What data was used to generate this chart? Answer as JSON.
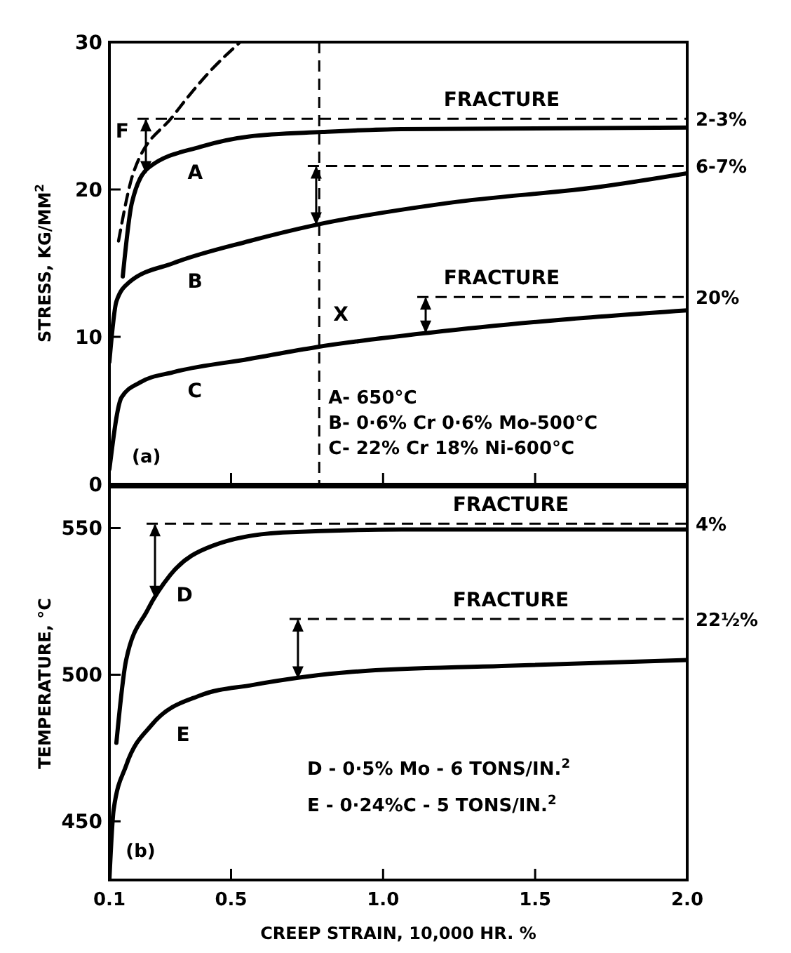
{
  "chart_data": [
    {
      "type": "line",
      "ylabel": "STRESS, KG/MM$^{2}$",
      "xlim": [
        0.1,
        2.0
      ],
      "ylim": [
        0,
        30
      ],
      "xticks": [
        0.1,
        0.5,
        1.0,
        1.5,
        2.0
      ],
      "yticks": [
        0,
        10,
        20,
        30
      ],
      "tick_labels": "y",
      "grid": false,
      "marker": "none",
      "series": [
        {
          "name": "A",
          "color": "#000000",
          "line_style": "solid",
          "x": [
            0.144,
            0.174,
            0.23,
            0.4,
            0.56,
            0.8,
            1.06,
            2.0
          ],
          "values": [
            14.1,
            19.1,
            21.5,
            22.9,
            23.6,
            23.9,
            24.1,
            24.2
          ]
        },
        {
          "name": "B",
          "color": "#000000",
          "line_style": "solid",
          "x": [
            0.1,
            0.123,
            0.165,
            0.31,
            0.56,
            0.78,
            1.22,
            1.72,
            2.0
          ],
          "values": [
            8.3,
            12.4,
            13.7,
            15.0,
            16.5,
            17.6,
            19.1,
            20.2,
            21.1
          ]
        },
        {
          "name": "C",
          "color": "#000000",
          "line_style": "solid",
          "x": [
            0.1,
            0.14,
            0.2,
            0.31,
            0.56,
            0.78,
            1.16,
            1.55,
            2.0
          ],
          "values": [
            1.0,
            5.9,
            6.9,
            7.6,
            8.5,
            9.3,
            10.3,
            11.1,
            11.8
          ]
        },
        {
          "name": "F",
          "color": "#000000",
          "line_style": "dashed",
          "x": [
            0.13,
            0.18,
            0.31,
            0.43,
            0.53
          ],
          "values": [
            16.5,
            21.2,
            25.0,
            28.0,
            30.0
          ]
        }
      ],
      "ref_lines": [
        {
          "axis": "y",
          "value": 24.8,
          "line_style": "dashed"
        },
        {
          "axis": "y",
          "value": 21.6,
          "line_style": "dashed"
        },
        {
          "axis": "y",
          "value": 12.7,
          "line_style": "dashed"
        },
        {
          "axis": "x",
          "value": 0.79,
          "label": "X",
          "line_style": "dashed"
        }
      ],
      "annotations": [
        "(a)",
        "A- 650°C",
        "B- 0·6% Cr 0·6% Mo-500°C",
        "C- 22% Cr 18% Ni-600°C",
        {
          "text": "FRACTURE",
          "x": 1.39,
          "y": 24.8
        },
        {
          "text": "FRACTURE",
          "x": 1.39,
          "y": 12.7
        },
        {
          "text": "2-3%",
          "x": 2.0,
          "y": 24.8
        },
        {
          "text": "6-7%",
          "x": 2.0,
          "y": 21.6
        },
        {
          "text": "20%",
          "x": 2.0,
          "y": 12.7
        }
      ]
    },
    {
      "type": "line",
      "xlabel": "CREEP STRAIN, 10,000 HR. %",
      "ylabel": "TEMPERATURE, °C",
      "xlim": [
        0.1,
        2.0
      ],
      "ylim": [
        430,
        564
      ],
      "xticks": [
        {
          "value": 0.1,
          "label": "0.1"
        },
        {
          "value": 0.5,
          "label": "0.5"
        },
        {
          "value": 1.0,
          "label": "1.0"
        },
        {
          "value": 1.5,
          "label": "1.5"
        },
        {
          "value": 2.0,
          "label": "2.0"
        }
      ],
      "yticks": [
        450,
        500,
        550
      ],
      "grid": false,
      "marker": "none",
      "series": [
        {
          "name": "D",
          "color": "#000000",
          "line_style": "solid",
          "x": [
            0.123,
            0.155,
            0.225,
            0.3,
            0.44,
            0.67,
            1.06,
            2.0
          ],
          "values": [
            476.8,
            505,
            522,
            534,
            544,
            548.5,
            549.5,
            549.5
          ]
        },
        {
          "name": "E",
          "color": "#000000",
          "line_style": "solid",
          "x": [
            0.1,
            0.114,
            0.155,
            0.24,
            0.4,
            0.57,
            0.9,
            1.39,
            2.0
          ],
          "values": [
            430,
            454,
            469,
            483,
            493,
            496.5,
            501,
            503,
            505
          ]
        }
      ],
      "ref_lines": [
        {
          "axis": "y",
          "value": 551.5,
          "line_style": "dashed"
        },
        {
          "axis": "y",
          "value": 519,
          "line_style": "dashed"
        }
      ],
      "annotations": [
        "(b)",
        "D - 0·5% Mo - 6 TONS/IN.$^{2}$",
        "E - 0·24%C - 5 TONS/IN.$^{2}$",
        {
          "text": "FRACTURE",
          "x": 1.42,
          "y": 551.5
        },
        {
          "text": "FRACTURE",
          "x": 1.42,
          "y": 519
        },
        {
          "text": "4%",
          "x": 2.0,
          "y": 551.5
        },
        {
          "text": "22½%",
          "x": 2.0,
          "y": 519
        }
      ]
    }
  ]
}
